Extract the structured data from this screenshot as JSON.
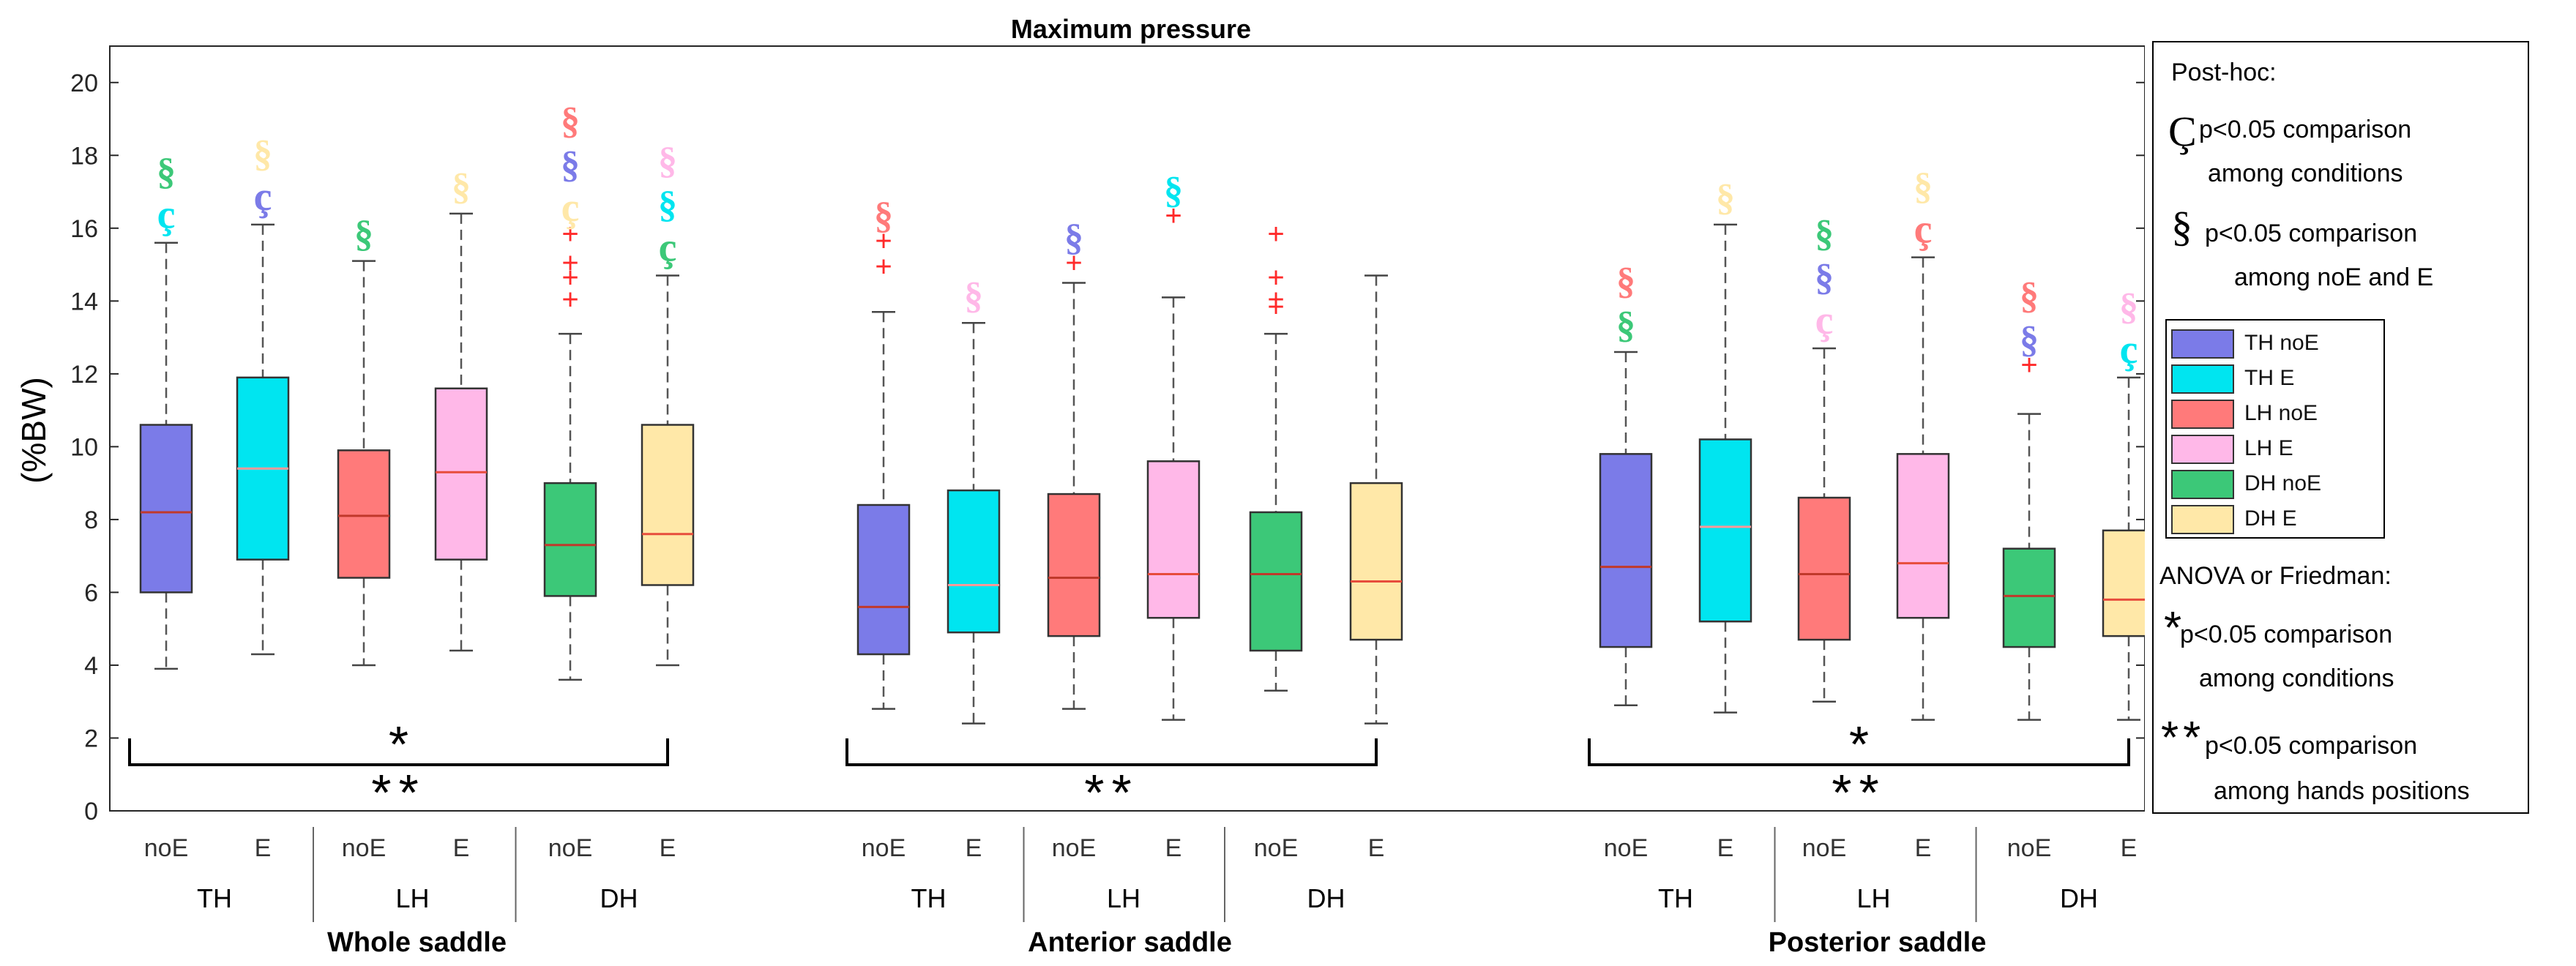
{
  "chart_data": {
    "type": "box",
    "title": "Maximum pressure",
    "ylabel": "(%BW)",
    "ylim": [
      0,
      21
    ],
    "yticks": [
      0,
      2,
      4,
      6,
      8,
      10,
      12,
      14,
      16,
      18,
      20
    ],
    "series_legend": [
      {
        "name": "TH noE",
        "color": "#7B7BE8"
      },
      {
        "name": "TH E",
        "color": "#00E5F0"
      },
      {
        "name": "LH noE",
        "color": "#FF7A7A"
      },
      {
        "name": "LH E",
        "color": "#FFB8E8"
      },
      {
        "name": "DH noE",
        "color": "#3CC878"
      },
      {
        "name": "DH E",
        "color": "#FFE8A8"
      }
    ],
    "panels": [
      {
        "name": "Whole saddle",
        "groups": [
          "TH",
          "LH",
          "DH"
        ],
        "stat_label_top": "*",
        "stat_label_bottom": "**",
        "boxes": [
          {
            "cond": "noE",
            "color": "#7B7BE8",
            "median_color": "#c0392b",
            "min": 3.9,
            "q1": 6.0,
            "median": 8.2,
            "q3": 10.6,
            "max": 15.6,
            "outliers": [],
            "symbols": [
              {
                "s": "ç",
                "color": "#00E5F0"
              },
              {
                "s": "§",
                "color": "#3CC878"
              }
            ]
          },
          {
            "cond": "E",
            "color": "#00E5F0",
            "median_color": "#ff9999",
            "min": 4.3,
            "q1": 6.9,
            "median": 9.4,
            "q3": 11.9,
            "max": 16.1,
            "outliers": [],
            "symbols": [
              {
                "s": "ç",
                "color": "#7B7BE8"
              },
              {
                "s": "§",
                "color": "#FFE8A8"
              }
            ]
          },
          {
            "cond": "noE",
            "color": "#FF7A7A",
            "median_color": "#c0392b",
            "min": 4.0,
            "q1": 6.4,
            "median": 8.1,
            "q3": 9.9,
            "max": 15.1,
            "outliers": [],
            "symbols": [
              {
                "s": "§",
                "color": "#3CC878"
              }
            ]
          },
          {
            "cond": "E",
            "color": "#FFB8E8",
            "median_color": "#e74c3c",
            "min": 4.4,
            "q1": 6.9,
            "median": 9.3,
            "q3": 11.6,
            "max": 16.4,
            "outliers": [],
            "symbols": [
              {
                "s": "§",
                "color": "#FFE8A8"
              }
            ]
          },
          {
            "cond": "noE",
            "color": "#3CC878",
            "median_color": "#c0392b",
            "min": 3.6,
            "q1": 5.9,
            "median": 7.3,
            "q3": 9.0,
            "max": 13.1,
            "outliers": [
              14.0,
              14.6,
              15.0,
              15.8
            ],
            "symbols": [
              {
                "s": "ç",
                "color": "#FFE8A8"
              },
              {
                "s": "§",
                "color": "#7B7BE8"
              },
              {
                "s": "§",
                "color": "#FF7A7A"
              }
            ]
          },
          {
            "cond": "E",
            "color": "#FFE8A8",
            "median_color": "#e74c3c",
            "min": 4.0,
            "q1": 6.2,
            "median": 7.6,
            "q3": 10.6,
            "max": 14.7,
            "outliers": [],
            "symbols": [
              {
                "s": "ç",
                "color": "#3CC878"
              },
              {
                "s": "§",
                "color": "#00E5F0"
              },
              {
                "s": "§",
                "color": "#FFB8E8"
              }
            ]
          }
        ]
      },
      {
        "name": "Anterior saddle",
        "groups": [
          "TH",
          "LH",
          "DH"
        ],
        "stat_label_top": "",
        "stat_label_bottom": "**",
        "boxes": [
          {
            "cond": "noE",
            "color": "#7B7BE8",
            "median_color": "#c0392b",
            "min": 2.8,
            "q1": 4.3,
            "median": 5.6,
            "q3": 8.4,
            "max": 13.7,
            "outliers": [
              14.9,
              15.6
            ],
            "symbols": [
              {
                "s": "§",
                "color": "#FF7A7A"
              }
            ]
          },
          {
            "cond": "E",
            "color": "#00E5F0",
            "median_color": "#ff9999",
            "min": 2.4,
            "q1": 4.9,
            "median": 6.2,
            "q3": 8.8,
            "max": 13.4,
            "outliers": [],
            "symbols": [
              {
                "s": "§",
                "color": "#FFB8E8"
              }
            ]
          },
          {
            "cond": "noE",
            "color": "#FF7A7A",
            "median_color": "#c0392b",
            "min": 2.8,
            "q1": 4.8,
            "median": 6.4,
            "q3": 8.7,
            "max": 14.5,
            "outliers": [
              15.0
            ],
            "symbols": [
              {
                "s": "§",
                "color": "#7B7BE8"
              }
            ]
          },
          {
            "cond": "E",
            "color": "#FFB8E8",
            "median_color": "#e74c3c",
            "min": 2.5,
            "q1": 5.3,
            "median": 6.5,
            "q3": 9.6,
            "max": 14.1,
            "outliers": [
              16.3
            ],
            "symbols": [
              {
                "s": "§",
                "color": "#00E5F0"
              }
            ]
          },
          {
            "cond": "noE",
            "color": "#3CC878",
            "median_color": "#c0392b",
            "min": 3.3,
            "q1": 4.4,
            "median": 6.5,
            "q3": 8.2,
            "max": 13.1,
            "outliers": [
              13.8,
              14.0,
              14.6,
              15.8
            ],
            "symbols": []
          },
          {
            "cond": "E",
            "color": "#FFE8A8",
            "median_color": "#e74c3c",
            "min": 2.4,
            "q1": 4.7,
            "median": 6.3,
            "q3": 9.0,
            "max": 14.7,
            "outliers": [],
            "symbols": []
          }
        ]
      },
      {
        "name": "Posterior saddle",
        "groups": [
          "TH",
          "LH",
          "DH"
        ],
        "stat_label_top": "*",
        "stat_label_bottom": "**",
        "boxes": [
          {
            "cond": "noE",
            "color": "#7B7BE8",
            "median_color": "#c0392b",
            "min": 2.9,
            "q1": 4.5,
            "median": 6.7,
            "q3": 9.8,
            "max": 12.6,
            "outliers": [],
            "symbols": [
              {
                "s": "§",
                "color": "#3CC878"
              },
              {
                "s": "§",
                "color": "#FF7A7A"
              }
            ]
          },
          {
            "cond": "E",
            "color": "#00E5F0",
            "median_color": "#ff9999",
            "min": 2.7,
            "q1": 5.2,
            "median": 7.8,
            "q3": 10.2,
            "max": 16.1,
            "outliers": [],
            "symbols": [
              {
                "s": "§",
                "color": "#FFE8A8"
              }
            ]
          },
          {
            "cond": "noE",
            "color": "#FF7A7A",
            "median_color": "#c0392b",
            "min": 3.0,
            "q1": 4.7,
            "median": 6.5,
            "q3": 8.6,
            "max": 12.7,
            "outliers": [],
            "symbols": [
              {
                "s": "ç",
                "color": "#FFB8E8"
              },
              {
                "s": "§",
                "color": "#7B7BE8"
              },
              {
                "s": "§",
                "color": "#3CC878"
              }
            ]
          },
          {
            "cond": "E",
            "color": "#FFB8E8",
            "median_color": "#e74c3c",
            "min": 2.5,
            "q1": 5.3,
            "median": 6.8,
            "q3": 9.8,
            "max": 15.2,
            "outliers": [],
            "symbols": [
              {
                "s": "ç",
                "color": "#FF7A7A"
              },
              {
                "s": "§",
                "color": "#FFE8A8"
              }
            ]
          },
          {
            "cond": "noE",
            "color": "#3CC878",
            "median_color": "#c0392b",
            "min": 2.5,
            "q1": 4.5,
            "median": 5.9,
            "q3": 7.2,
            "max": 10.9,
            "outliers": [
              12.2
            ],
            "symbols": [
              {
                "s": "§",
                "color": "#7B7BE8"
              },
              {
                "s": "§",
                "color": "#FF7A7A"
              }
            ]
          },
          {
            "cond": "E",
            "color": "#FFE8A8",
            "median_color": "#e74c3c",
            "min": 2.5,
            "q1": 4.8,
            "median": 5.8,
            "q3": 7.7,
            "max": 11.9,
            "outliers": [],
            "symbols": [
              {
                "s": "ç",
                "color": "#00E5F0"
              },
              {
                "s": "§",
                "color": "#FFB8E8"
              }
            ]
          }
        ]
      }
    ]
  },
  "legend": {
    "posthoc_title": "Post-hoc:",
    "c_symbol": "Ç",
    "c_line1": "p<0.05 comparison",
    "c_line2": "among conditions",
    "s_symbol": "§",
    "s_line1": "p<0.05 comparison",
    "s_line2": "among noE and E",
    "anova_title": "ANOVA or Friedman:",
    "star1_symbol": "*",
    "star1_line1": "p<0.05 comparison",
    "star1_line2": "among conditions",
    "star2_symbol": "**",
    "star2_line1": "p<0.05 comparison",
    "star2_line2": "among hands positions",
    "swatches": [
      {
        "label": "TH noE",
        "color": "#7B7BE8"
      },
      {
        "label": "TH E",
        "color": "#00E5F0"
      },
      {
        "label": "LH noE",
        "color": "#FF7A7A"
      },
      {
        "label": "LH E",
        "color": "#FFB8E8"
      },
      {
        "label": "DH noE",
        "color": "#3CC878"
      },
      {
        "label": "DH E",
        "color": "#FFE8A8"
      }
    ]
  }
}
